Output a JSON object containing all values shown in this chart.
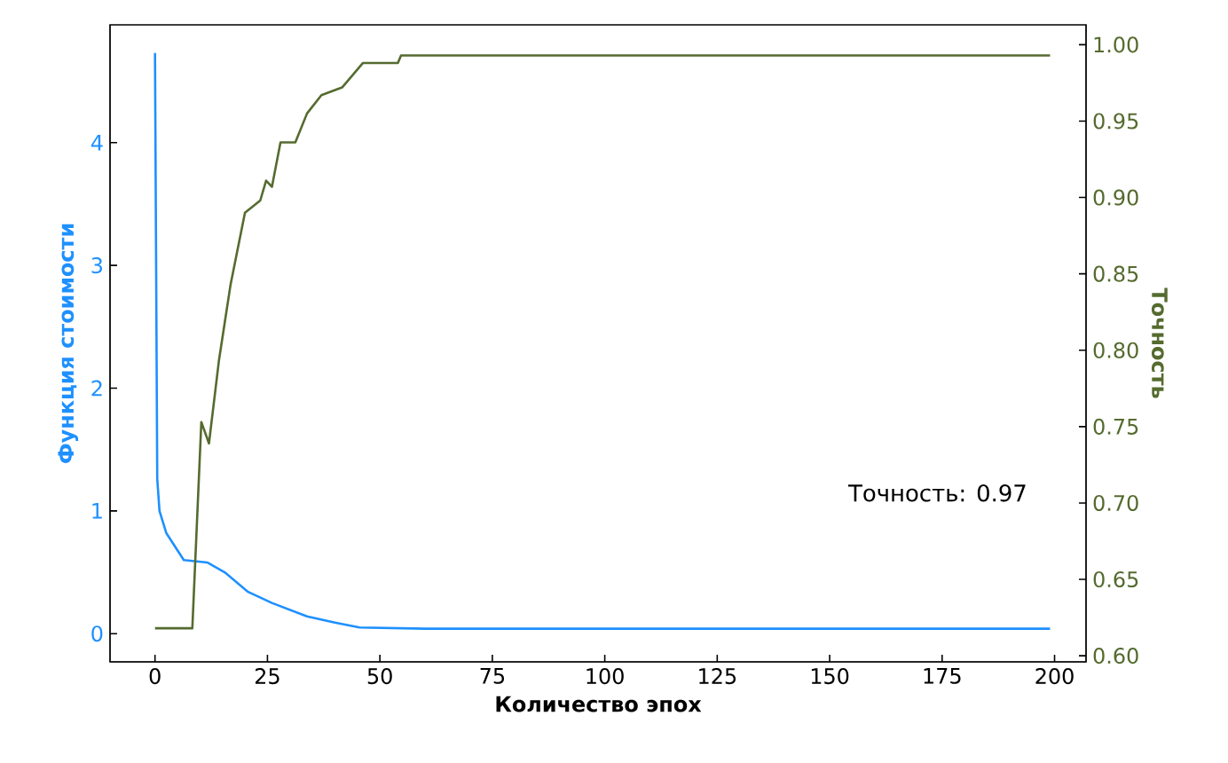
{
  "chart_data": {
    "type": "line",
    "xlabel": "Количество эпох",
    "ylabel": "Функция стоимости",
    "y2label": "Точность",
    "annotations": [
      "Точность: 0.97"
    ],
    "series": [
      {
        "color": "#1e90ff",
        "x": [
          0,
          0.5,
          1,
          2.5,
          6.4,
          11.6,
          15.5,
          20.7,
          26,
          33.8,
          40,
          45.5,
          60,
          199
        ],
        "values": [
          4.73,
          1.26,
          1.0,
          0.82,
          0.6,
          0.58,
          0.5,
          0.34,
          0.25,
          0.14,
          0.09,
          0.05,
          0.04,
          0.04
        ]
      },
      {
        "color": "#556b2f",
        "axis": "y2",
        "x": [
          0,
          8.3,
          10.3,
          12,
          14.2,
          16.8,
          20,
          23.4,
          24.7,
          26,
          27.9,
          31.2,
          33.8,
          37,
          41.6,
          46.2,
          54,
          54.7,
          199
        ],
        "values": [
          0.618,
          0.618,
          0.753,
          0.739,
          0.793,
          0.843,
          0.89,
          0.898,
          0.911,
          0.907,
          0.936,
          0.936,
          0.955,
          0.967,
          0.972,
          0.988,
          0.988,
          0.993,
          0.993
        ]
      }
    ],
    "xlim": [
      -10,
      207
    ],
    "xticks": [
      0,
      25,
      50,
      75,
      100,
      125,
      150,
      175,
      200
    ],
    "ylim": [
      -0.23,
      4.96
    ],
    "yticks": [
      0,
      1,
      2,
      3,
      4
    ],
    "y2lim": [
      0.596,
      1.013
    ],
    "y2ticks": [
      {
        "value": 0.6,
        "label": "0.60"
      },
      {
        "value": 0.65,
        "label": "0.65"
      },
      {
        "value": 0.7,
        "label": "0.70"
      },
      {
        "value": 0.75,
        "label": "0.75"
      },
      {
        "value": 0.8,
        "label": "0.80"
      },
      {
        "value": 0.85,
        "label": "0.85"
      },
      {
        "value": 0.9,
        "label": "0.90"
      },
      {
        "value": 0.95,
        "label": "0.95"
      },
      {
        "value": 1.0,
        "label": "1.00"
      }
    ],
    "grid": false,
    "marker": "none",
    "line_style": "solid"
  }
}
